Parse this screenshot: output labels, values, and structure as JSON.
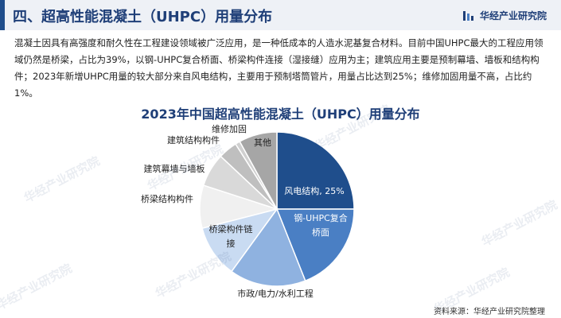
{
  "header": {
    "title": "四、超高性能混凝土（UHPC）用量分布",
    "brand": "华经产业研究院"
  },
  "intro": "混凝土因具有高强度和耐久性在工程建设领域被广泛应用，是一种低成本的人造水泥基复合材料。目前中国UHPC最大的工程应用领域仍然是桥梁，占比为39%，以钢-UHPC复合桥面、桥梁构件连接（湿接缝）应用为主；建筑应用主要是预制幕墙、墙板和结构构件；2023年新增UHPC用量的较大部分来自风电结构，主要用于预制塔筒管片，用量占比达到25%；维修加固用量不高，占比约1%。",
  "watermark": "华经产业研究院",
  "source": "资料来源：华经产业研究院整理",
  "colors": {
    "brand": "#1f3f78",
    "header_bg": "#eef1f6"
  },
  "chart_data": {
    "type": "pie",
    "title": "2023年中国超高性能混凝土（UHPC）用量分布",
    "unit": "%",
    "start": "12 o'clock, clockwise",
    "slices": [
      {
        "label": "风电结构, 25%",
        "value": 25,
        "color": "#1f4e8c",
        "text_color": "#ffffff"
      },
      {
        "label": "钢-UHPC复合桥面",
        "value": 19,
        "color": "#4a7fc4",
        "text_color": "#ffffff"
      },
      {
        "label": "市政/电力/水利工程",
        "value": 16,
        "color": "#8fb2e0",
        "text_color": "#222222"
      },
      {
        "label": "桥梁构件链接",
        "value": 11,
        "color": "#c9dbf2",
        "text_color": "#222222"
      },
      {
        "label": "桥梁结构构件",
        "value": 9,
        "color": "#f0f0f0",
        "text_color": "#222222"
      },
      {
        "label": "建筑幕墙与墙板",
        "value": 7,
        "color": "#d9d9d9",
        "text_color": "#222222"
      },
      {
        "label": "建筑结构构件",
        "value": 4,
        "color": "#bfbfbf",
        "text_color": "#222222"
      },
      {
        "label": "维修加固",
        "value": 1,
        "color": "#d0d0d0",
        "text_color": "#222222"
      },
      {
        "label": "其他",
        "value": 8,
        "color": "#a6a6a6",
        "text_color": "#222222"
      }
    ]
  }
}
